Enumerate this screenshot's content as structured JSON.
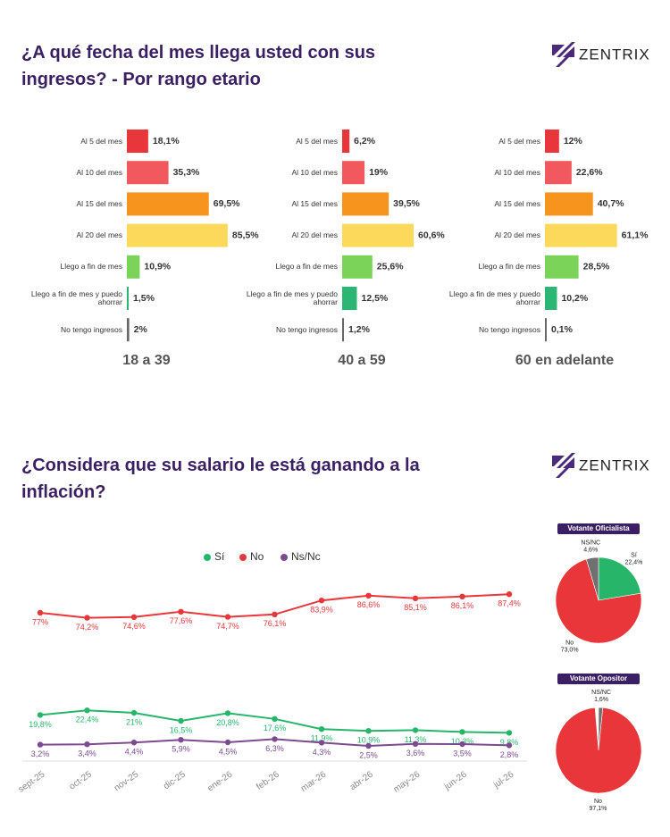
{
  "logo": "ZENTRIX",
  "chart_data": [
    {
      "type": "bar",
      "title": "¿A qué fecha del mes llega usted con sus ingresos? - Por rango etario",
      "subtitle": "18 a 39",
      "categories": [
        "Al 5 del mes",
        "Al 10 del mes",
        "Al 15 del mes",
        "Al 20 del mes",
        "Llego a fin de mes",
        "Llego a fin de mes y puedo ahorrar",
        "No tengo ingresos"
      ],
      "colors": [
        "#e8363a",
        "#f2595e",
        "#f7941d",
        "#fcd95a",
        "#7bd35a",
        "#2bb673",
        "#666666"
      ],
      "values": [
        18.1,
        35.3,
        69.5,
        85.5,
        10.9,
        1.5,
        2
      ],
      "value_labels": [
        "18,1%",
        "35,3%",
        "69,5%",
        "85,5%",
        "10,9%",
        "1,5%",
        "2%"
      ]
    },
    {
      "type": "bar",
      "subtitle": "40 a 59",
      "categories": [
        "Al 5 del mes",
        "Al 10 del mes",
        "Al 15 del mes",
        "Al 20 del mes",
        "Llego a fin de mes",
        "Llego a fin de mes y puedo ahorrar",
        "No tengo ingresos"
      ],
      "colors": [
        "#e8363a",
        "#f2595e",
        "#f7941d",
        "#fcd95a",
        "#7bd35a",
        "#2bb673",
        "#666666"
      ],
      "values": [
        6.2,
        19,
        39.5,
        60.6,
        25.6,
        12.5,
        1.2
      ],
      "value_labels": [
        "6,2%",
        "19%",
        "39,5%",
        "60,6%",
        "25,6%",
        "12,5%",
        "1,2%"
      ]
    },
    {
      "type": "bar",
      "subtitle": "60 en adelante",
      "categories": [
        "Al 5 del mes",
        "Al 10 del mes",
        "Al 15 del mes",
        "Al 20 del mes",
        "Llego a fin de mes",
        "Llego a fin de mes y puedo ahorrar",
        "No tengo ingresos"
      ],
      "colors": [
        "#e8363a",
        "#f2595e",
        "#f7941d",
        "#fcd95a",
        "#7bd35a",
        "#2bb673",
        "#666666"
      ],
      "values": [
        12,
        22.6,
        40.7,
        61.1,
        28.5,
        10.2,
        0.1
      ],
      "value_labels": [
        "12%",
        "22,6%",
        "40,7%",
        "61,1%",
        "28,5%",
        "10,2%",
        "0,1%"
      ]
    },
    {
      "type": "line",
      "title": "¿Considera que su salario le está ganando a la inflación?",
      "categories": [
        "sept-25",
        "oct-25",
        "nov-25",
        "dic-25",
        "ene-26",
        "feb-26",
        "mar-26",
        "abr-26",
        "may-26",
        "jun-26",
        "jul-26"
      ],
      "series": [
        {
          "name": "Sí",
          "color": "#27b56a",
          "values": [
            19.8,
            22.4,
            21,
            16.5,
            20.8,
            17.6,
            11.9,
            10.9,
            11.3,
            10.3,
            9.8
          ],
          "value_labels": [
            "19,8%",
            "22,4%",
            "21%",
            "16,5%",
            "20,8%",
            "17,6%",
            "11,9%",
            "10,9%",
            "11,3%",
            "10,3%",
            "9,8%"
          ]
        },
        {
          "name": "No",
          "color": "#e8363a",
          "values": [
            77,
            74.2,
            74.6,
            77.6,
            74.7,
            76.1,
            83.9,
            86.6,
            85.1,
            86.1,
            87.4
          ],
          "value_labels": [
            "77%",
            "74,2%",
            "74,6%",
            "77,6%",
            "74,7%",
            "76,1%",
            "83,9%",
            "86,6%",
            "85,1%",
            "86,1%",
            "87,4%"
          ]
        },
        {
          "name": "Ns/Nc",
          "color": "#7b4a8f",
          "values": [
            3.2,
            3.4,
            4.4,
            5.9,
            4.5,
            6.3,
            4.3,
            2.5,
            3.6,
            3.5,
            2.8
          ],
          "value_labels": [
            "3,2%",
            "3,4%",
            "4,4%",
            "5,9%",
            "4,5%",
            "6,3%",
            "4,3%",
            "2,5%",
            "3,6%",
            "3,5%",
            "2,8%"
          ]
        }
      ]
    },
    {
      "type": "pie",
      "title": "Votante Oficialista",
      "categories": [
        "Sí",
        "No",
        "NS/NC"
      ],
      "values": [
        22.4,
        73.0,
        4.6
      ],
      "value_labels": [
        "22,4%",
        "73,0%",
        "4,6%"
      ],
      "colors": [
        "#27b56a",
        "#e8363a",
        "#707070"
      ]
    },
    {
      "type": "pie",
      "title": "Votante Opositor",
      "categories": [
        "NS/NC",
        "No"
      ],
      "values": [
        1.6,
        97.1
      ],
      "value_labels": [
        "1,6%",
        "97,1%"
      ],
      "colors": [
        "#707070",
        "#e8363a"
      ]
    }
  ]
}
